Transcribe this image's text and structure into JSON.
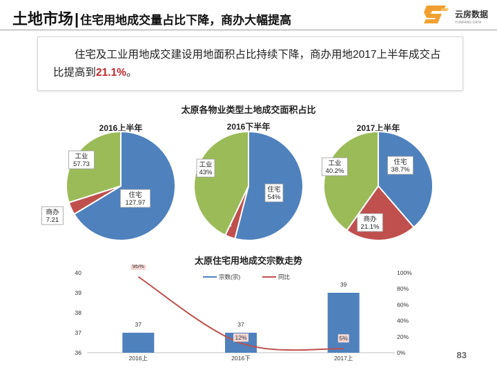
{
  "header": {
    "title_main": "土地市场",
    "separator": "|",
    "title_sub": "住宅用地成交量占比下降，商办大幅提高"
  },
  "logo": {
    "brand_cn": "云房数据",
    "brand_en": "YUNFANG DATA",
    "color": "#f0a030"
  },
  "summary": {
    "text_before": "住宅及工业用地成交建设用地面积占比持续下降，商办用地2017上半年成交占比提高到",
    "highlight": "21.1%",
    "text_after": "。"
  },
  "chart_data": [
    {
      "type": "pie",
      "title": "太原各物业类型土地成交面积占比",
      "colors": {
        "住宅": "#4f81bd",
        "商办": "#c0504d",
        "工业": "#9bbb59"
      },
      "pies": [
        {
          "subtitle": "2016上半年",
          "slices": [
            {
              "name": "住宅",
              "value": 127.97,
              "label": "127.97"
            },
            {
              "name": "商办",
              "value": 7.21,
              "label": "7.21"
            },
            {
              "name": "工业",
              "value": 57.73,
              "label": "57.73"
            }
          ]
        },
        {
          "subtitle": "2016下半年",
          "slices": [
            {
              "name": "住宅",
              "value": 54,
              "label": "54%"
            },
            {
              "name": "商办",
              "value": 3,
              "label": "3%"
            },
            {
              "name": "工业",
              "value": 43,
              "label": "43%"
            }
          ]
        },
        {
          "subtitle": "2017上半年",
          "slices": [
            {
              "name": "住宅",
              "value": 38.7,
              "label": "38.7%"
            },
            {
              "name": "商办",
              "value": 21.1,
              "label": "21.1%"
            },
            {
              "name": "工业",
              "value": 40.2,
              "label": "40.2%"
            }
          ]
        }
      ]
    },
    {
      "type": "bar",
      "title": "太原住宅用地成交宗数走势",
      "categories": [
        "2016上",
        "2016下",
        "2017上"
      ],
      "series": [
        {
          "name": "宗数(宗)",
          "kind": "bar",
          "axis": "left",
          "color": "#4f81bd",
          "values": [
            37,
            37,
            39
          ],
          "labels": [
            "37",
            "37",
            "39"
          ]
        },
        {
          "name": "同比",
          "kind": "line",
          "axis": "right",
          "color": "#c0504d",
          "values": [
            95,
            12,
            5
          ],
          "labels": [
            "95%",
            "12%",
            "5%"
          ]
        }
      ],
      "ylim": [
        36,
        40
      ],
      "yticks": [
        36,
        37,
        38,
        39,
        40
      ],
      "y2lim": [
        0,
        100
      ],
      "y2ticks": [
        "0%",
        "20%",
        "40%",
        "60%",
        "80%",
        "100%"
      ],
      "legend": "top-center"
    }
  ],
  "page_number": "83"
}
